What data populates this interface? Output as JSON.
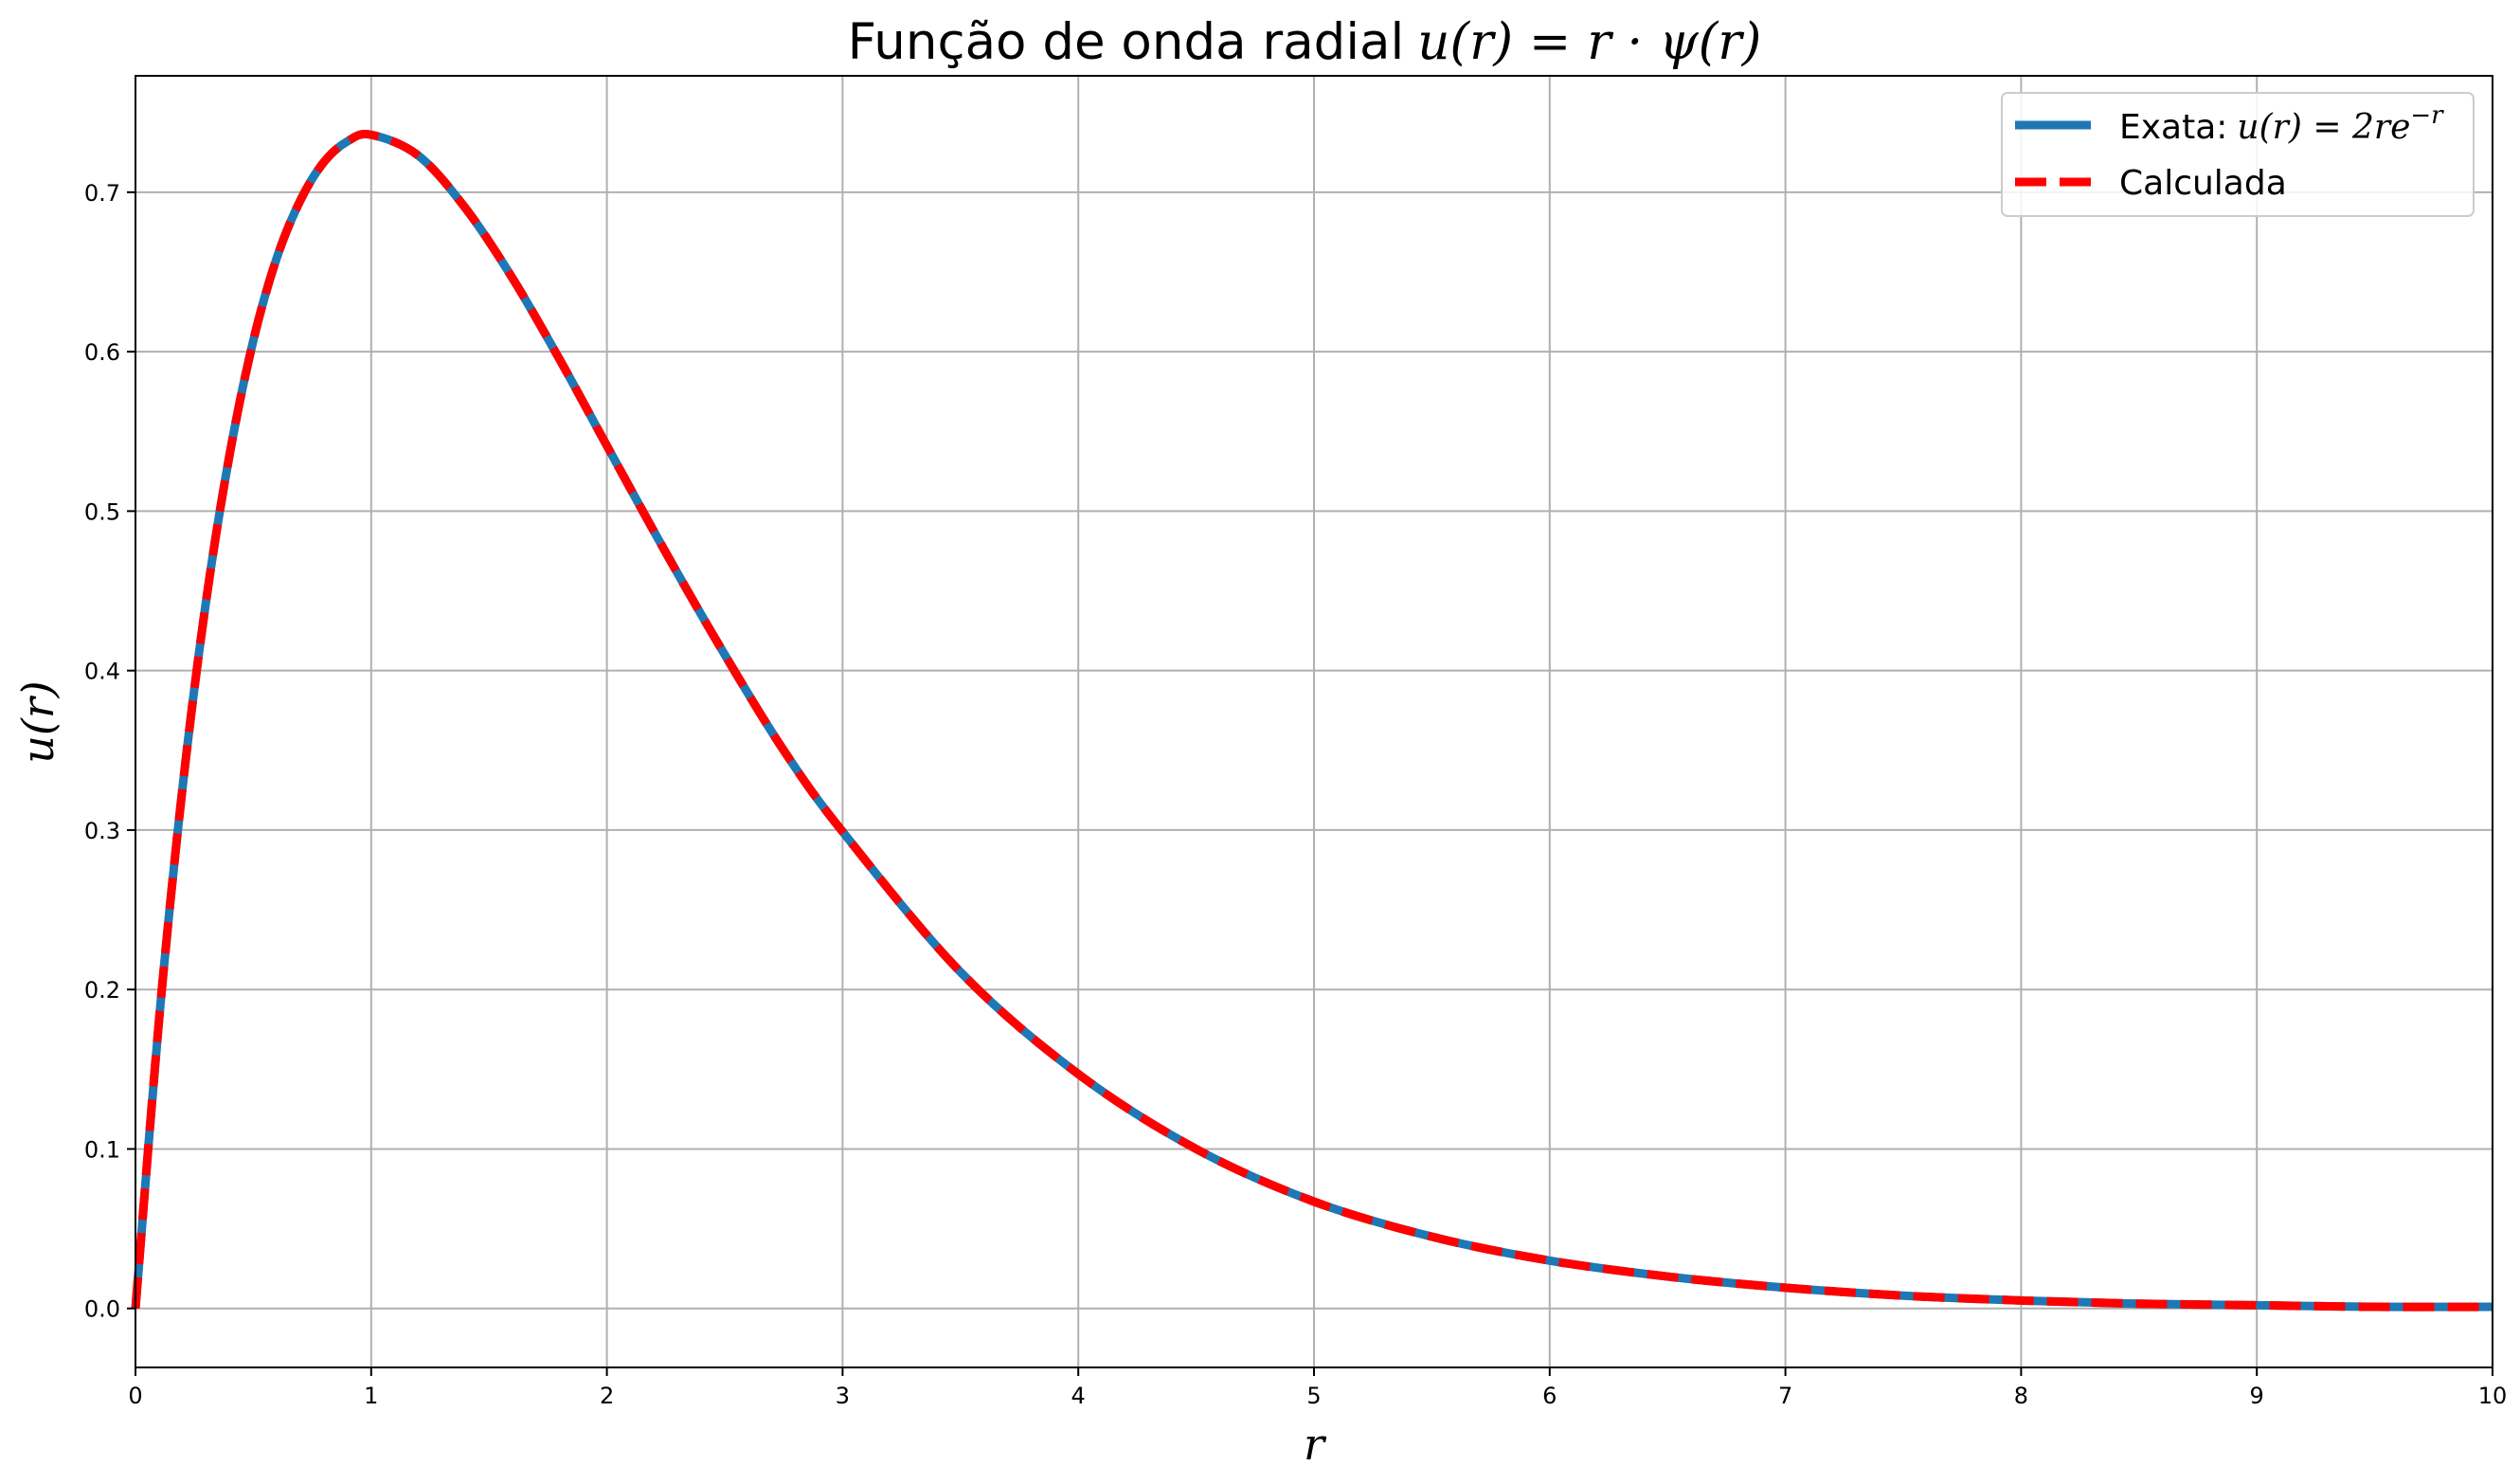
{
  "chart_data": {
    "type": "line",
    "title": "Função de onda radial u(r) = r · ψ(r)",
    "title_prefix": "Função de onda radial",
    "title_math": "u(r) = r · ψ(r)",
    "xlabel": "r",
    "ylabel": "u(r)",
    "xlim": [
      0,
      10
    ],
    "ylim": [
      -0.037,
      0.773
    ],
    "x_ticks": [
      "0",
      "1",
      "2",
      "3",
      "4",
      "5",
      "6",
      "7",
      "8",
      "9",
      "10"
    ],
    "y_ticks": [
      "0.0",
      "0.1",
      "0.2",
      "0.3",
      "0.4",
      "0.5",
      "0.6",
      "0.7"
    ],
    "grid": true,
    "legend_position": "top-right",
    "x": [
      0,
      0.1,
      0.2,
      0.3,
      0.4,
      0.5,
      0.6,
      0.7,
      0.8,
      0.9,
      1.0,
      1.2,
      1.4,
      1.6,
      1.8,
      2.0,
      2.25,
      2.5,
      2.75,
      3.0,
      3.5,
      4.0,
      4.5,
      5.0,
      5.5,
      6.0,
      6.5,
      7.0,
      7.5,
      8.0,
      8.5,
      9.0,
      9.5,
      10.0
    ],
    "series": [
      {
        "name": "Exata: u(r) = 2re^{−r}",
        "legend_prefix": "Exata:",
        "legend_math": "u(r) = 2re",
        "legend_sup": "−r",
        "color": "#1f77b4",
        "style": "solid",
        "values": [
          0,
          0.181,
          0.327,
          0.444,
          0.536,
          0.607,
          0.659,
          0.695,
          0.719,
          0.732,
          0.736,
          0.723,
          0.69,
          0.646,
          0.595,
          0.541,
          0.474,
          0.41,
          0.35,
          0.299,
          0.211,
          0.147,
          0.1,
          0.067,
          0.045,
          0.03,
          0.02,
          0.013,
          0.008,
          0.005,
          0.003,
          0.002,
          0.001,
          0.001
        ]
      },
      {
        "name": "Calculada",
        "color": "#ff0000",
        "style": "dashed",
        "values": [
          0,
          0.181,
          0.327,
          0.444,
          0.536,
          0.607,
          0.659,
          0.695,
          0.719,
          0.732,
          0.736,
          0.723,
          0.69,
          0.646,
          0.595,
          0.541,
          0.474,
          0.41,
          0.35,
          0.299,
          0.211,
          0.147,
          0.1,
          0.067,
          0.045,
          0.03,
          0.02,
          0.013,
          0.008,
          0.005,
          0.003,
          0.002,
          0.001,
          0.001
        ]
      }
    ]
  }
}
